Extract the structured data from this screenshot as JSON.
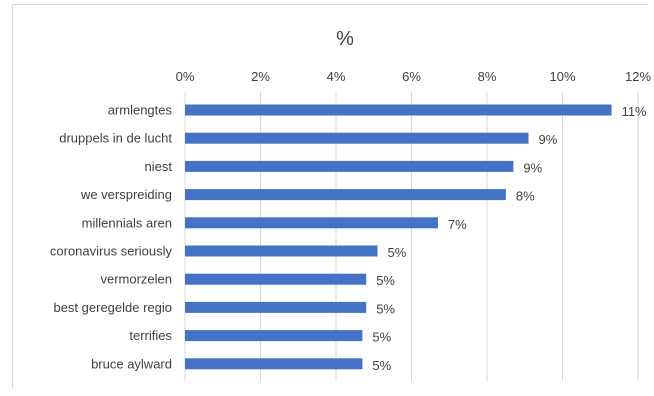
{
  "chart_data": {
    "type": "bar",
    "orientation": "horizontal",
    "title": "%",
    "categories": [
      "armlengtes",
      "druppels in de lucht",
      "niest",
      "we verspreiding",
      "millennials aren",
      "coronavirus seriously",
      "vermorzelen",
      "best geregelde regio",
      "terrifies",
      "bruce aylward"
    ],
    "values": [
      11.3,
      9.1,
      8.7,
      8.5,
      6.7,
      5.1,
      4.8,
      4.8,
      4.7,
      4.7
    ],
    "data_labels": [
      "11%",
      "9%",
      "9%",
      "8%",
      "7%",
      "5%",
      "5%",
      "5%",
      "5%",
      "5%"
    ],
    "xlim": [
      0,
      12
    ],
    "ticks": [
      0,
      2,
      4,
      6,
      8,
      10,
      12
    ],
    "tick_labels": [
      "0%",
      "2%",
      "4%",
      "6%",
      "8%",
      "10%",
      "12%"
    ],
    "grid": true,
    "bar_color": "#4472c4",
    "grid_color": "#d9d9d9"
  }
}
